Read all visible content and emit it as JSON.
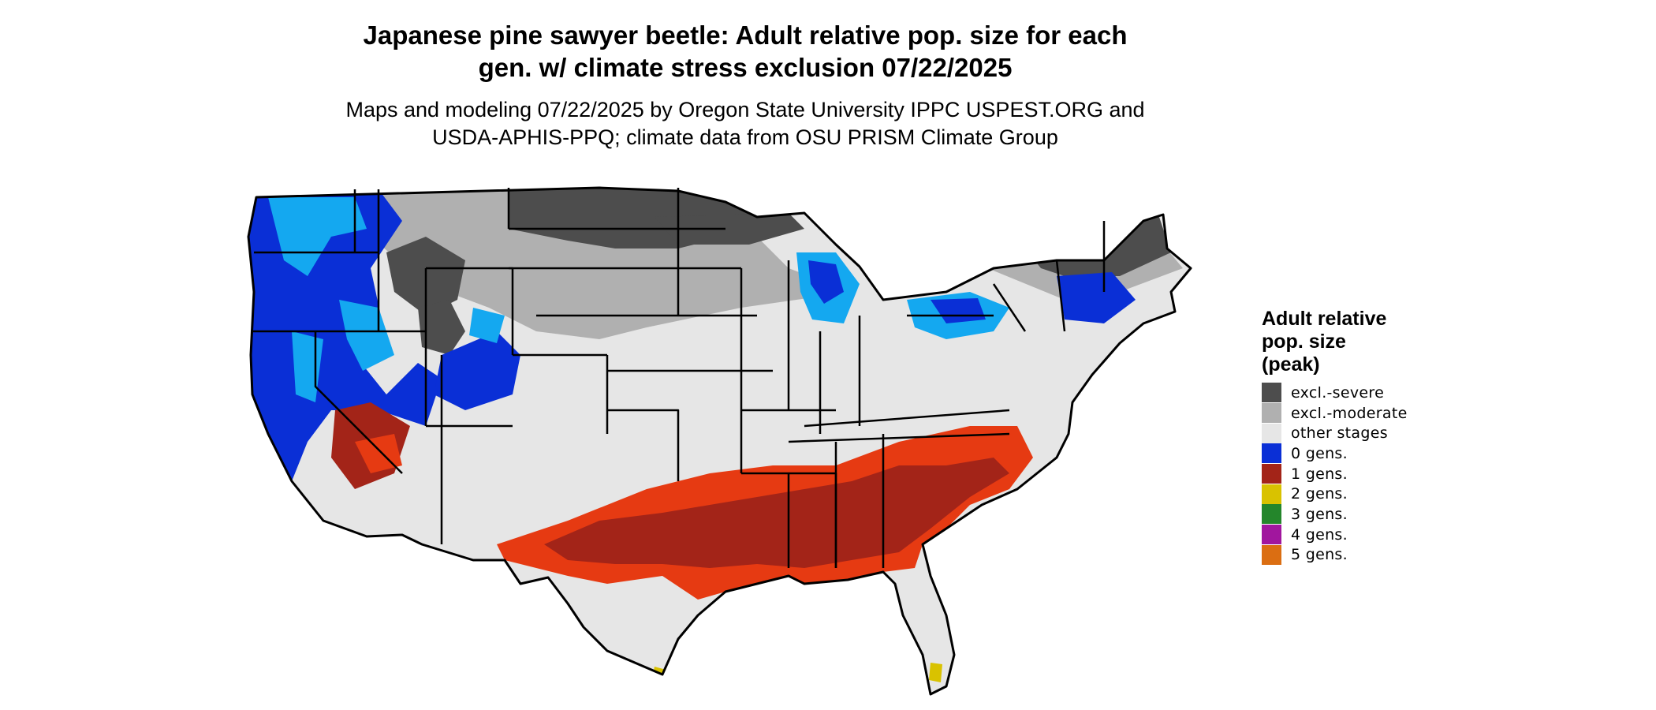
{
  "title": {
    "line1": "Japanese pine sawyer beetle: Adult relative pop. size for each",
    "line2": "gen. w/ climate stress exclusion 07/22/2025"
  },
  "subtitle": {
    "line1": "Maps and modeling 07/22/2025 by Oregon State University IPPC USPEST.ORG and",
    "line2": "USDA-APHIS-PPQ; climate data from OSU PRISM Climate Group"
  },
  "legend": {
    "title_lines": [
      "Adult relative",
      "pop. size",
      "(peak)"
    ],
    "items": [
      {
        "label": "excl.-severe",
        "color": "#4d4d4d"
      },
      {
        "label": "excl.-moderate",
        "color": "#b0b0b0"
      },
      {
        "label": "other stages",
        "color": "#e6e6e6"
      },
      {
        "label": "0 gens.",
        "color": "#0a2fd6"
      },
      {
        "label": "1 gens.",
        "color": "#a32418"
      },
      {
        "label": "2 gens.",
        "color": "#d9c200"
      },
      {
        "label": "3 gens.",
        "color": "#24862b"
      },
      {
        "label": "4 gens.",
        "color": "#a1169e"
      },
      {
        "label": "5 gens.",
        "color": "#db6e12"
      }
    ]
  },
  "map_colors": {
    "background": "#ffffff",
    "state_border": "#000000",
    "light_blue": "#14a8f0",
    "orange_red": "#e63a12"
  }
}
